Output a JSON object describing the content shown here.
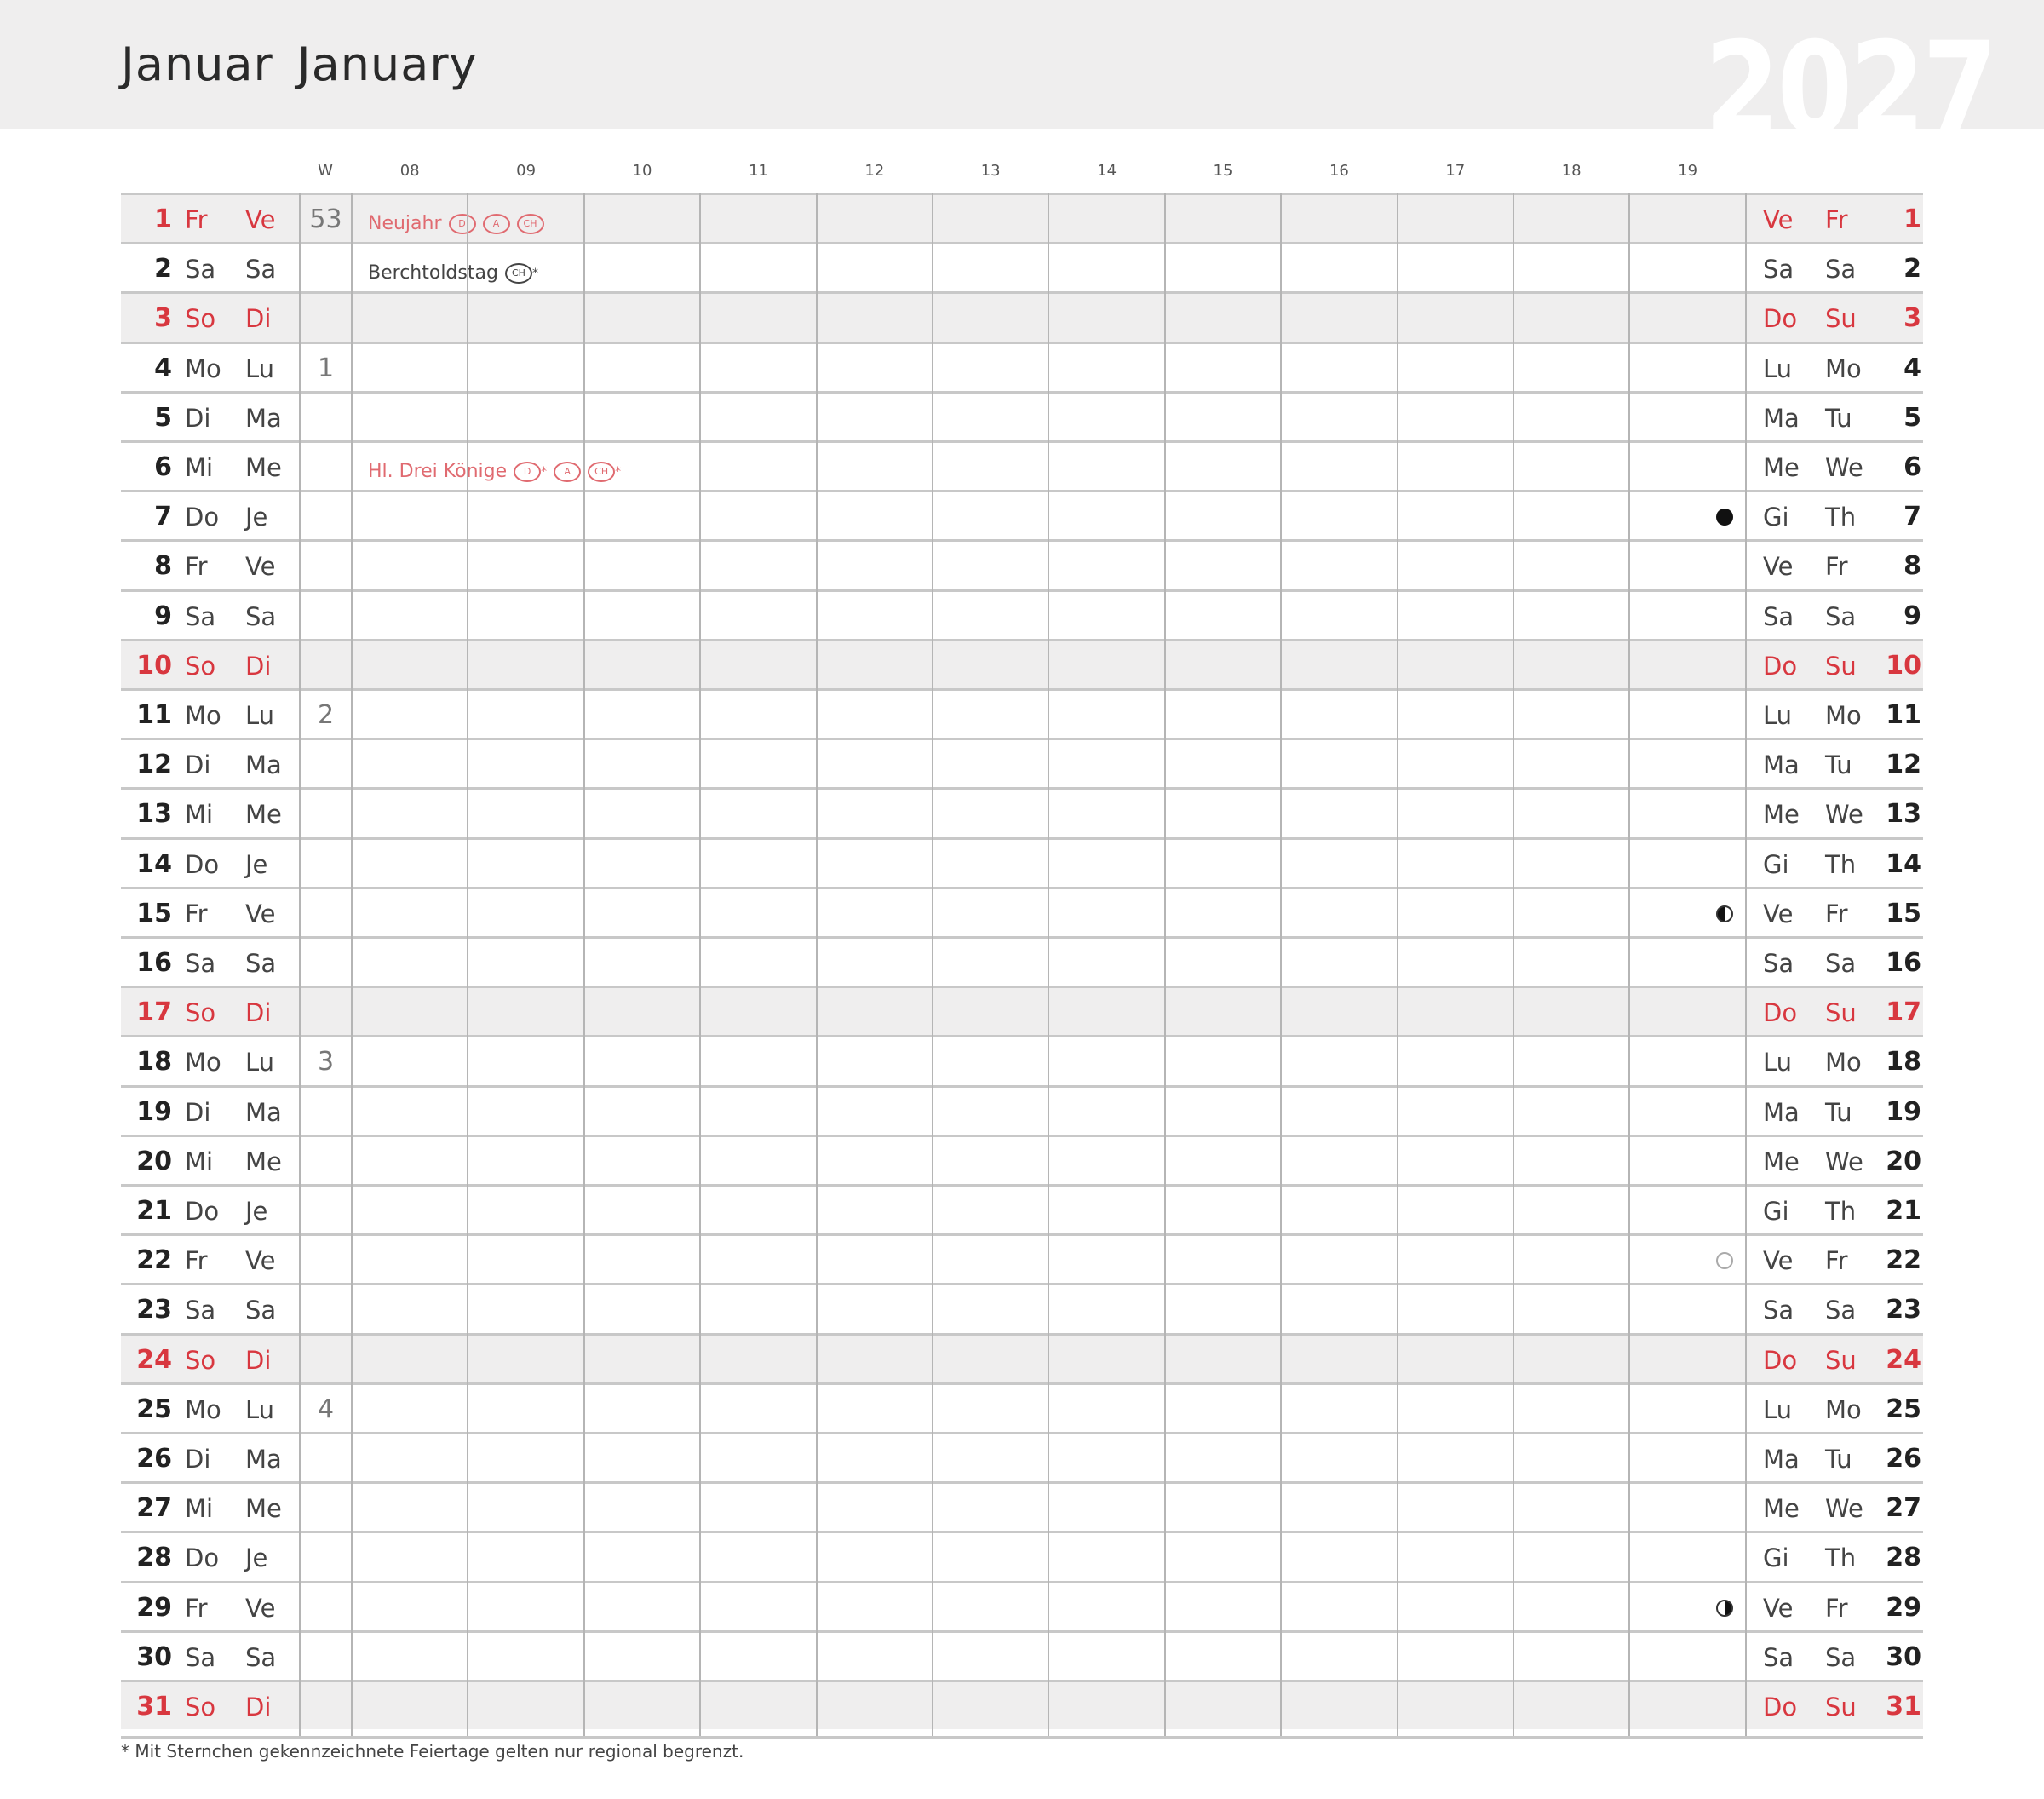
{
  "header": {
    "month_de": "Januar",
    "month_en": "January",
    "year": "2027"
  },
  "columns": {
    "week_label": "W",
    "hours": [
      "08",
      "09",
      "10",
      "11",
      "12",
      "13",
      "14",
      "15",
      "16",
      "17",
      "18",
      "19"
    ]
  },
  "colors": {
    "accent_red": "#d8373f",
    "weekend_bg": "#efeeee",
    "header_bg": "#efeeee"
  },
  "days": [
    {
      "n": "1",
      "de": "Fr",
      "fr": "Ve",
      "it": "Ve",
      "en": "Fr",
      "week": "53",
      "red": true,
      "holiday": {
        "name": "Neujahr",
        "badges": [
          {
            "t": "D",
            "star": false
          },
          {
            "t": "A",
            "star": false
          },
          {
            "t": "CH",
            "star": false
          }
        ]
      }
    },
    {
      "n": "2",
      "de": "Sa",
      "fr": "Sa",
      "it": "Sa",
      "en": "Sa",
      "holiday": {
        "name": "Berchtoldstag",
        "regular": true,
        "badges": [
          {
            "t": "CH",
            "star": true
          }
        ]
      }
    },
    {
      "n": "3",
      "de": "So",
      "fr": "Di",
      "it": "Do",
      "en": "Su",
      "red": true
    },
    {
      "n": "4",
      "de": "Mo",
      "fr": "Lu",
      "it": "Lu",
      "en": "Mo",
      "week": "1"
    },
    {
      "n": "5",
      "de": "Di",
      "fr": "Ma",
      "it": "Ma",
      "en": "Tu"
    },
    {
      "n": "6",
      "de": "Mi",
      "fr": "Me",
      "it": "Me",
      "en": "We",
      "holiday": {
        "name": "Hl. Drei Könige",
        "badges": [
          {
            "t": "D",
            "star": true
          },
          {
            "t": "A",
            "star": false
          },
          {
            "t": "CH",
            "star": true
          }
        ]
      }
    },
    {
      "n": "7",
      "de": "Do",
      "fr": "Je",
      "it": "Gi",
      "en": "Th",
      "moon": "new-moon"
    },
    {
      "n": "8",
      "de": "Fr",
      "fr": "Ve",
      "it": "Ve",
      "en": "Fr"
    },
    {
      "n": "9",
      "de": "Sa",
      "fr": "Sa",
      "it": "Sa",
      "en": "Sa"
    },
    {
      "n": "10",
      "de": "So",
      "fr": "Di",
      "it": "Do",
      "en": "Su",
      "red": true
    },
    {
      "n": "11",
      "de": "Mo",
      "fr": "Lu",
      "it": "Lu",
      "en": "Mo",
      "week": "2"
    },
    {
      "n": "12",
      "de": "Di",
      "fr": "Ma",
      "it": "Ma",
      "en": "Tu"
    },
    {
      "n": "13",
      "de": "Mi",
      "fr": "Me",
      "it": "Me",
      "en": "We"
    },
    {
      "n": "14",
      "de": "Do",
      "fr": "Je",
      "it": "Gi",
      "en": "Th"
    },
    {
      "n": "15",
      "de": "Fr",
      "fr": "Ve",
      "it": "Ve",
      "en": "Fr",
      "moon": "first-quarter"
    },
    {
      "n": "16",
      "de": "Sa",
      "fr": "Sa",
      "it": "Sa",
      "en": "Sa"
    },
    {
      "n": "17",
      "de": "So",
      "fr": "Di",
      "it": "Do",
      "en": "Su",
      "red": true
    },
    {
      "n": "18",
      "de": "Mo",
      "fr": "Lu",
      "it": "Lu",
      "en": "Mo",
      "week": "3"
    },
    {
      "n": "19",
      "de": "Di",
      "fr": "Ma",
      "it": "Ma",
      "en": "Tu"
    },
    {
      "n": "20",
      "de": "Mi",
      "fr": "Me",
      "it": "Me",
      "en": "We"
    },
    {
      "n": "21",
      "de": "Do",
      "fr": "Je",
      "it": "Gi",
      "en": "Th"
    },
    {
      "n": "22",
      "de": "Fr",
      "fr": "Ve",
      "it": "Ve",
      "en": "Fr",
      "moon": "full-moon"
    },
    {
      "n": "23",
      "de": "Sa",
      "fr": "Sa",
      "it": "Sa",
      "en": "Sa"
    },
    {
      "n": "24",
      "de": "So",
      "fr": "Di",
      "it": "Do",
      "en": "Su",
      "red": true
    },
    {
      "n": "25",
      "de": "Mo",
      "fr": "Lu",
      "it": "Lu",
      "en": "Mo",
      "week": "4"
    },
    {
      "n": "26",
      "de": "Di",
      "fr": "Ma",
      "it": "Ma",
      "en": "Tu"
    },
    {
      "n": "27",
      "de": "Mi",
      "fr": "Me",
      "it": "Me",
      "en": "We"
    },
    {
      "n": "28",
      "de": "Do",
      "fr": "Je",
      "it": "Gi",
      "en": "Th"
    },
    {
      "n": "29",
      "de": "Fr",
      "fr": "Ve",
      "it": "Ve",
      "en": "Fr",
      "moon": "last-quarter"
    },
    {
      "n": "30",
      "de": "Sa",
      "fr": "Sa",
      "it": "Sa",
      "en": "Sa"
    },
    {
      "n": "31",
      "de": "So",
      "fr": "Di",
      "it": "Do",
      "en": "Su",
      "red": true
    }
  ],
  "footnote": "* Mit Sternchen gekennzeichnete Feiertage gelten nur regional begrenzt."
}
